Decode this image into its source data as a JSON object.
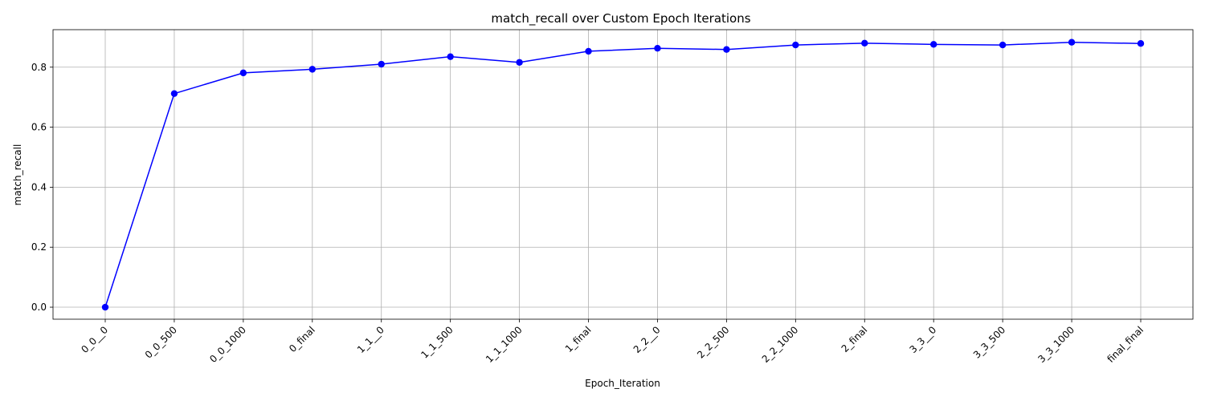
{
  "chart_data": {
    "type": "line",
    "title": "match_recall over Custom Epoch Iterations",
    "xlabel": "Epoch_Iteration",
    "ylabel": "match_recall",
    "categories": [
      "0_0__0",
      "0_0_500",
      "0_0_1000",
      "0_final",
      "1_1__0",
      "1_1_500",
      "1_1_1000",
      "1_final",
      "2_2__0",
      "2_2_500",
      "2_2_1000",
      "2_final",
      "3_3__0",
      "3_3_500",
      "3_3_1000",
      "final_final"
    ],
    "series": [
      {
        "values": [
          0.0,
          0.712,
          0.781,
          0.793,
          0.81,
          0.835,
          0.816,
          0.853,
          0.863,
          0.859,
          0.874,
          0.88,
          0.876,
          0.874,
          0.883,
          0.879
        ],
        "color": "#0000ff",
        "marker": "circle"
      }
    ],
    "ylim": [
      -0.04,
      0.925
    ],
    "yticks": [
      0.0,
      0.2,
      0.4,
      0.6,
      0.8
    ],
    "ytick_labels": [
      "0.0",
      "0.2",
      "0.4",
      "0.6",
      "0.8"
    ],
    "grid": true,
    "legend": "none"
  }
}
